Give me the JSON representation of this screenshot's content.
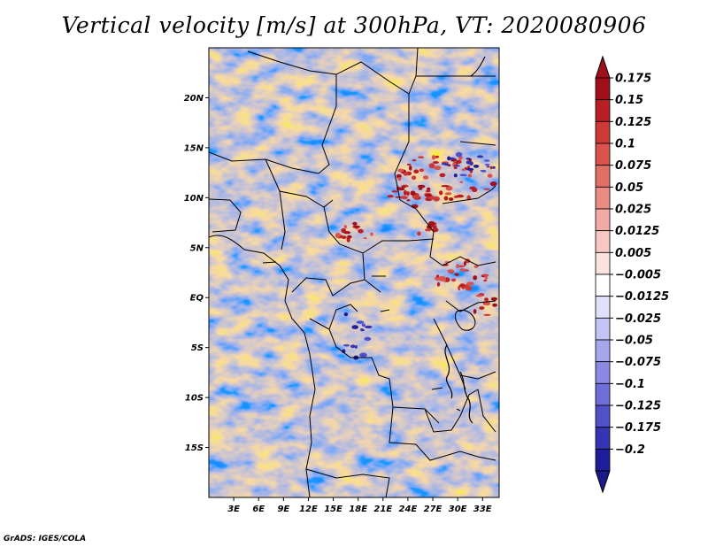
{
  "title": "Vertical velocity [m/s] at 300hPa, VT: 2020080906",
  "credit": "GrADS: IGES/COLA",
  "map": {
    "lon_range": [
      0,
      35
    ],
    "lat_range": [
      -20,
      25
    ],
    "lat_ticks": [
      {
        "value": 20,
        "label": "20N"
      },
      {
        "value": 15,
        "label": "15N"
      },
      {
        "value": 10,
        "label": "10N"
      },
      {
        "value": 5,
        "label": "5N"
      },
      {
        "value": 0,
        "label": "EQ"
      },
      {
        "value": -5,
        "label": "5S"
      },
      {
        "value": -10,
        "label": "10S"
      },
      {
        "value": -15,
        "label": "15S"
      }
    ],
    "lon_ticks": [
      {
        "value": 3,
        "label": "3E"
      },
      {
        "value": 6,
        "label": "6E"
      },
      {
        "value": 9,
        "label": "9E"
      },
      {
        "value": 12,
        "label": "12E"
      },
      {
        "value": 15,
        "label": "15E"
      },
      {
        "value": 18,
        "label": "18E"
      },
      {
        "value": 21,
        "label": "21E"
      },
      {
        "value": 24,
        "label": "24E"
      },
      {
        "value": 27,
        "label": "27E"
      },
      {
        "value": 30,
        "label": "30E"
      },
      {
        "value": 33,
        "label": "33E"
      }
    ]
  },
  "colorbar": {
    "levels": [
      {
        "label": "0.175",
        "color": "#a0101a"
      },
      {
        "label": "0.15",
        "color": "#b81e24"
      },
      {
        "label": "0.125",
        "color": "#cc3a38"
      },
      {
        "label": "0.1",
        "color": "#d9534c"
      },
      {
        "label": "0.075",
        "color": "#e26f66"
      },
      {
        "label": "0.05",
        "color": "#ea8c84"
      },
      {
        "label": "0.025",
        "color": "#f2aba4"
      },
      {
        "label": "0.0125",
        "color": "#f7c8c3"
      },
      {
        "label": "0.005",
        "color": "#fbe2df"
      },
      {
        "label": "−0.005",
        "color": "#ffffff"
      },
      {
        "label": "−0.0125",
        "color": "#e0e0fb"
      },
      {
        "label": "−0.025",
        "color": "#c4c4f4"
      },
      {
        "label": "−0.05",
        "color": "#a6a6ec"
      },
      {
        "label": "−0.075",
        "color": "#8a8ae4"
      },
      {
        "label": "−0.1",
        "color": "#6e6ed8"
      },
      {
        "label": "−0.125",
        "color": "#5050c8"
      },
      {
        "label": "−0.175",
        "color": "#3434b4"
      },
      {
        "label": "−0.2",
        "color": "#1e1e9a"
      }
    ],
    "top_color": "#a0101a",
    "bottom_color": "#1a1a8a"
  }
}
